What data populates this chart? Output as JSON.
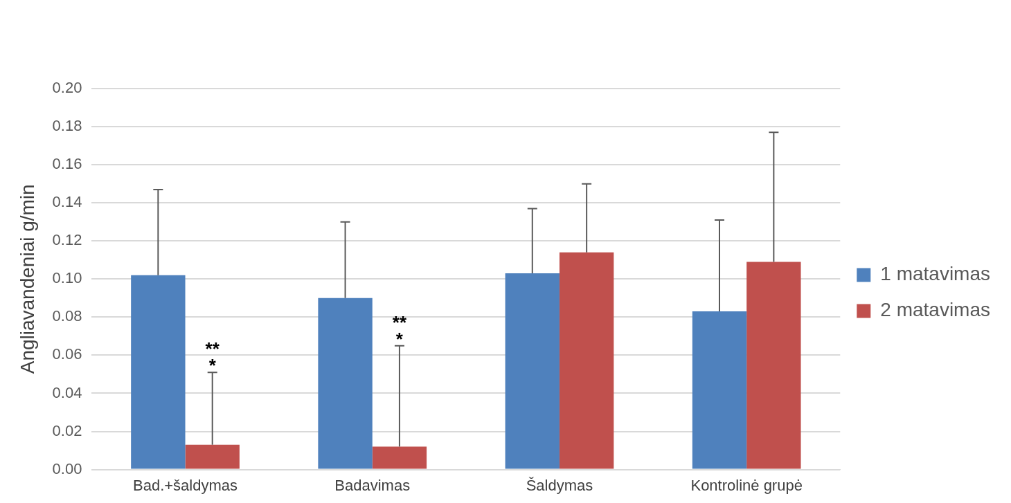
{
  "chart_data": {
    "type": "bar",
    "ylabel": "Angliavandeniai g/min",
    "categories": [
      "Bad.+šaldymas",
      "Badavimas",
      "Šaldymas",
      "Kontrolinė grupė"
    ],
    "series": [
      {
        "name": "1 matavimas",
        "color": "#4f81bd",
        "values": [
          0.102,
          0.09,
          0.103,
          0.083
        ],
        "errors": [
          [
            0.102,
            0.147
          ],
          [
            0.09,
            0.13
          ],
          [
            0.103,
            0.137
          ],
          [
            0.083,
            0.131
          ]
        ]
      },
      {
        "name": "2 matavimas",
        "color": "#c0504d",
        "values": [
          0.013,
          0.012,
          0.114,
          0.109
        ],
        "errors": [
          [
            0.013,
            0.051
          ],
          [
            0.012,
            0.065
          ],
          [
            0.114,
            0.15
          ],
          [
            0.109,
            0.177
          ]
        ]
      }
    ],
    "ylim": [
      0,
      0.2
    ],
    "yticks": [
      {
        "value": 0,
        "label": "0.00"
      },
      {
        "value": 0.02,
        "label": "0.02"
      },
      {
        "value": 0.04,
        "label": "0.04"
      },
      {
        "value": 0.06,
        "label": "0.06"
      },
      {
        "value": 0.08,
        "label": "0.08"
      },
      {
        "value": 0.1,
        "label": "0.10"
      },
      {
        "value": 0.12,
        "label": "0.12"
      },
      {
        "value": 0.14,
        "label": "0.14"
      },
      {
        "value": 0.16,
        "label": "0.16"
      },
      {
        "value": 0.18,
        "label": "0.18"
      },
      {
        "value": 0.2,
        "label": "0.20"
      }
    ],
    "grid": "y",
    "legend": "right",
    "annotations": [
      {
        "text": "**",
        "x": "Bad.+šaldymas",
        "y": 0.051
      },
      {
        "text": "*",
        "x": "Bad.+šaldymas",
        "y": 0.051
      },
      {
        "text": "**",
        "x": "Badavimas",
        "y": 0.065
      },
      {
        "text": "*",
        "x": "Badavimas",
        "y": 0.065
      }
    ]
  }
}
